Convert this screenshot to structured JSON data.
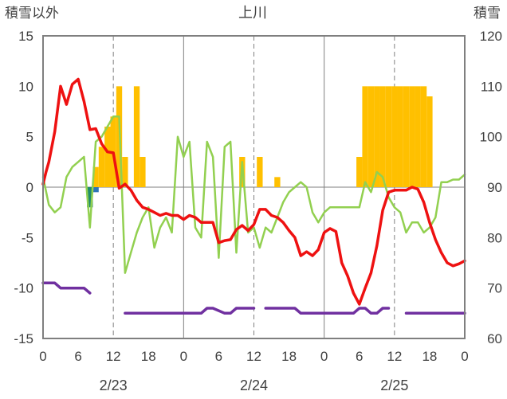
{
  "chart_data": {
    "type": "line",
    "title": "上川",
    "ylabel_left": "積雪以外",
    "ylabel_right": "積雪",
    "ylim_left": [
      -15,
      15
    ],
    "yticks_left": [
      15,
      10,
      5,
      0,
      -5,
      -10,
      -15
    ],
    "ylim_right": [
      60,
      120
    ],
    "yticks_right": [
      120,
      110,
      100,
      90,
      80,
      70,
      60
    ],
    "xlim": [
      0,
      72
    ],
    "xtick_labels": [
      "0",
      "6",
      "12",
      "18",
      "0",
      "6",
      "12",
      "18",
      "0",
      "6",
      "12",
      "18",
      "0"
    ],
    "date_labels": [
      {
        "label": "2/23",
        "x": 12
      },
      {
        "label": "2/24",
        "x": 36
      },
      {
        "label": "2/25",
        "x": 60
      }
    ],
    "day_boundaries": [
      24,
      48
    ],
    "six_hour_grid": [
      12,
      36,
      60
    ],
    "colors": {
      "temperature": "#ee1111",
      "snow_depth": "#92d050",
      "wind": "#7030a0",
      "snowfall_bar": "#ffc000",
      "rain_bar": "#2e75b6",
      "rain_bar_top": "#1f8c6e"
    },
    "series": [
      {
        "role": "temperature",
        "axis": "left",
        "x": [
          0,
          0.5,
          1,
          2,
          3,
          4,
          5,
          6,
          7,
          8,
          9,
          10,
          11,
          12,
          13,
          14,
          15,
          16,
          17,
          18,
          19,
          20,
          21,
          22,
          23,
          24,
          25,
          26,
          27,
          28,
          29,
          30,
          31,
          32,
          33,
          34,
          35,
          36,
          37,
          38,
          39,
          40,
          41,
          42,
          43,
          44,
          45,
          46,
          47,
          48,
          49,
          50,
          51,
          52,
          53,
          54,
          55,
          56,
          57,
          58,
          59,
          60,
          61,
          62,
          63,
          64,
          65,
          66,
          67,
          68,
          69,
          70,
          71,
          72
        ],
        "values": [
          0.3,
          1.5,
          2.5,
          5.5,
          10,
          8.2,
          10.2,
          10.7,
          8.5,
          5.7,
          5.8,
          4.3,
          3.5,
          3.4,
          -0.1,
          0.3,
          -0.3,
          -1.3,
          -2,
          -2.2,
          -2.5,
          -2.8,
          -2.6,
          -2.8,
          -2.8,
          -3.2,
          -2.8,
          -3.0,
          -3.5,
          -3.5,
          -3.5,
          -5.5,
          -5.3,
          -5.2,
          -4.2,
          -3.8,
          -4.3,
          -3.7,
          -2.2,
          -2.2,
          -2.8,
          -3.0,
          -3.5,
          -4.3,
          -5.0,
          -6.8,
          -6.4,
          -6.8,
          -6.2,
          -4.5,
          -4.1,
          -4.4,
          -7.5,
          -8.8,
          -10.5,
          -11.6,
          -10,
          -8.5,
          -5.8,
          -2.3,
          -0.5,
          -0.3,
          -0.3,
          -0.3,
          0.0,
          -0.2,
          -1.5,
          -3.5,
          -5.2,
          -6.5,
          -7.5,
          -7.8,
          -7.6,
          -7.3
        ]
      },
      {
        "role": "snow_depth",
        "axis": "right",
        "x": [
          0,
          1,
          2,
          3,
          4,
          5,
          6,
          7,
          8,
          9,
          10,
          11,
          12,
          13,
          14,
          15,
          16,
          17,
          18,
          19,
          20,
          21,
          22,
          23,
          24,
          25,
          26,
          27,
          28,
          29,
          30,
          31,
          32,
          33,
          34,
          35,
          36,
          37,
          38,
          39,
          40,
          41,
          42,
          43,
          44,
          45,
          46,
          47,
          48,
          49,
          50,
          51,
          52,
          53,
          54,
          55,
          56,
          57,
          58,
          59,
          60,
          61,
          62,
          63,
          64,
          65,
          66,
          67,
          68,
          69,
          70,
          71,
          72
        ],
        "values": [
          92,
          86.5,
          85,
          86,
          92,
          94,
          95,
          96,
          82,
          99,
          100,
          102,
          104,
          104,
          73,
          77,
          81,
          84,
          86,
          78,
          82,
          84,
          81,
          100,
          96,
          99,
          82,
          80,
          99,
          96,
          76,
          98,
          99,
          77,
          95,
          81,
          82,
          78,
          82,
          81,
          84,
          87,
          89,
          90,
          91,
          90,
          85,
          83,
          85,
          86,
          86,
          86,
          86,
          86,
          86,
          91,
          89,
          93,
          92,
          88,
          86,
          85,
          81,
          83,
          83,
          81,
          82,
          84,
          91,
          91,
          91.5,
          91.5,
          92.5
        ]
      },
      {
        "role": "wind",
        "axis": "left",
        "segments": [
          {
            "x": [
              0,
              2,
              3,
              6,
              7,
              8
            ],
            "values": [
              -9.5,
              -9.5,
              -10,
              -10,
              -10,
              -10.5
            ]
          },
          {
            "x": [
              14,
              17,
              24,
              27,
              28,
              29,
              31,
              32,
              33,
              36
            ],
            "values": [
              -12.5,
              -12.5,
              -12.5,
              -12.5,
              -12,
              -12,
              -12.5,
              -12.5,
              -12,
              -12
            ]
          },
          {
            "x": [
              38,
              40,
              41,
              42,
              43,
              44,
              45,
              46,
              47,
              48,
              53,
              54,
              55,
              56,
              57,
              58,
              59
            ],
            "values": [
              -12,
              -12,
              -12,
              -12,
              -12,
              -12.5,
              -12.5,
              -12.5,
              -12.5,
              -12.5,
              -12.5,
              -12,
              -12,
              -12.5,
              -12.5,
              -12,
              -12
            ]
          },
          {
            "x": [
              62,
              66,
              70,
              71,
              72
            ],
            "values": [
              -12.5,
              -12.5,
              -12.5,
              -12.5,
              -12.5
            ]
          }
        ]
      },
      {
        "role": "snowfall",
        "type": "bar",
        "axis": "left",
        "x": [
          9,
          10,
          11,
          12,
          13,
          14,
          16,
          17,
          34,
          37,
          40,
          54,
          55,
          56,
          57,
          58,
          59,
          60,
          61,
          62,
          63,
          64,
          65,
          66
        ],
        "values": [
          2,
          4,
          6,
          7,
          10,
          3,
          10,
          3,
          3,
          3,
          1,
          3,
          10,
          10,
          10,
          10,
          10,
          10,
          10,
          10,
          10,
          10,
          10,
          9
        ]
      },
      {
        "role": "rain",
        "type": "bar",
        "axis": "left",
        "x": [
          8,
          9
        ],
        "values": [
          -2,
          -0.5
        ]
      }
    ]
  }
}
